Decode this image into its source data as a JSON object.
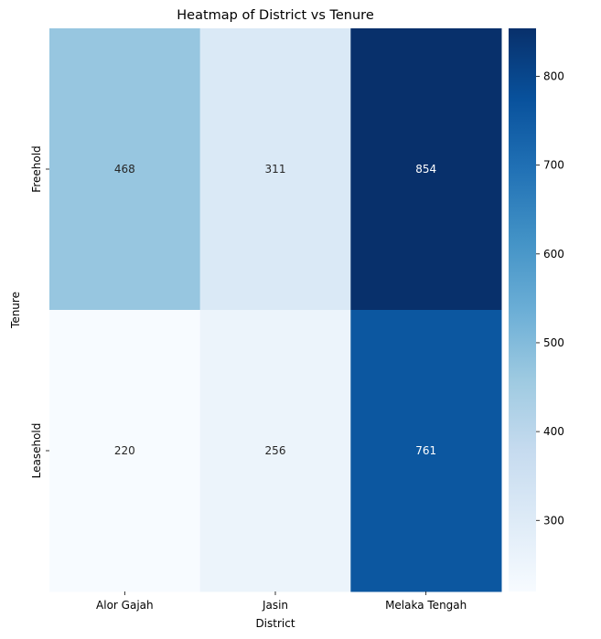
{
  "chart_data": {
    "type": "heatmap",
    "title": "Heatmap of District vs Tenure",
    "xlabel": "District",
    "ylabel": "Tenure",
    "x_categories": [
      "Alor Gajah",
      "Jasin",
      "Melaka Tengah"
    ],
    "y_categories": [
      "Freehold",
      "Leasehold"
    ],
    "values": [
      [
        468,
        311,
        854
      ],
      [
        220,
        256,
        761
      ]
    ],
    "colormap": "Blues",
    "color_range": [
      220,
      854
    ],
    "colorbar_ticks": [
      300,
      400,
      500,
      600,
      700,
      800
    ],
    "colorbar_stops": [
      "#f7fbff",
      "#deebf7",
      "#c6dbef",
      "#9ecae1",
      "#6baed6",
      "#4292c6",
      "#2171b5",
      "#08519c",
      "#08306b"
    ],
    "annotation_dark_text": "#262626",
    "annotation_light_text": "#ffffff"
  }
}
